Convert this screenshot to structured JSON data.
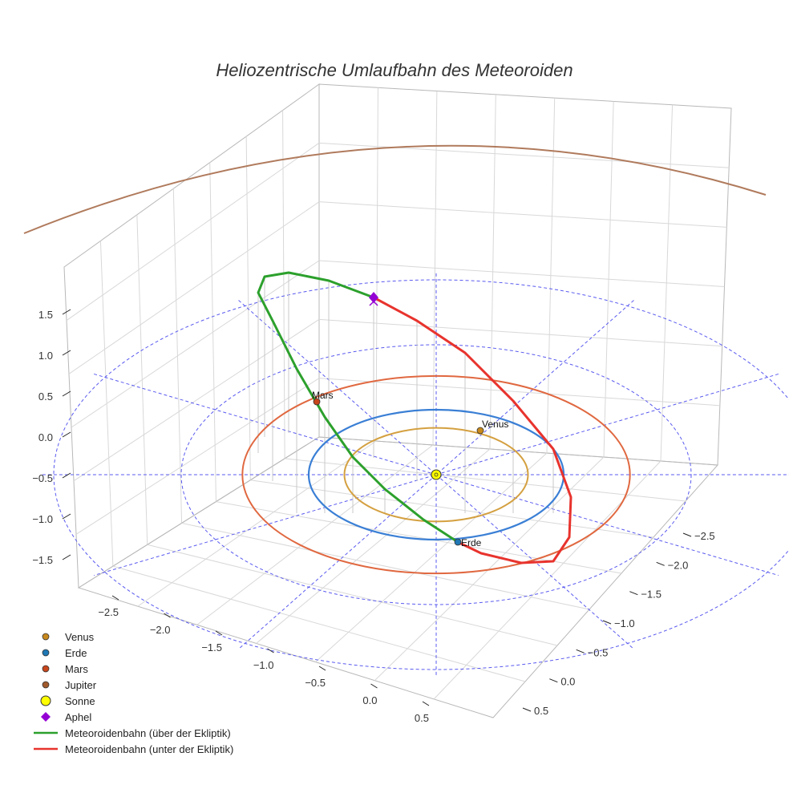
{
  "chart_data": {
    "type": "3d-line",
    "title": "Heliozentrische Umlaufbahn des Meteoroiden",
    "x_ticks": [
      "−2.5",
      "−2.0",
      "−1.5",
      "−1.0",
      "−0.5",
      "0.0",
      "0.5"
    ],
    "y_ticks": [
      "−2.5",
      "−2.0",
      "−1.5",
      "−1.0",
      "−0.5",
      "0.0",
      "0.5"
    ],
    "z_ticks": [
      "1.5",
      "1.0",
      "0.5",
      "0.0",
      "−0.5",
      "−1.0",
      "−1.5"
    ],
    "x_tick_values": [
      -2.5,
      -2.0,
      -1.5,
      -1.0,
      -0.5,
      0.0,
      0.5
    ],
    "y_tick_values": [
      -2.5,
      -2.0,
      -1.5,
      -1.0,
      -0.5,
      0.0,
      0.5
    ],
    "z_tick_values": [
      1.5,
      1.0,
      0.5,
      0.0,
      -0.5,
      -1.0,
      -1.5
    ],
    "planets": [
      {
        "name": "Venus",
        "orbit_radius_au": 0.72,
        "color": "#d4a040",
        "marker_color": "#c8891c",
        "angle_deg": 48
      },
      {
        "name": "Erde",
        "orbit_radius_au": 1.0,
        "color": "#3a7fd5",
        "marker_color": "#1f77b4",
        "angle_deg": 280
      },
      {
        "name": "Mars",
        "orbit_radius_au": 1.52,
        "color": "#e06840",
        "marker_color": "#c8461c",
        "angle_deg": 145
      },
      {
        "name": "Jupiter",
        "orbit_radius_au": 5.2,
        "color": "#b07a5c",
        "marker_color": "#a05a2c",
        "angle_deg": null
      }
    ],
    "sun": {
      "name": "Sonne",
      "color": "#ffff00"
    },
    "meteoroid_orbit": {
      "perihelion_au": 1.0,
      "aphelion_au": 2.3,
      "aphelion_height_au": 1.7,
      "above_color": "#2ca02c",
      "below_color": "#e8332d"
    }
  },
  "legend": [
    {
      "label": "Venus",
      "kind": "dot",
      "color": "#c8891c"
    },
    {
      "label": "Erde",
      "kind": "dot",
      "color": "#1f77b4"
    },
    {
      "label": "Mars",
      "kind": "dot",
      "color": "#c8461c"
    },
    {
      "label": "Jupiter",
      "kind": "dot",
      "color": "#a05a2c"
    },
    {
      "label": "Sonne",
      "kind": "sun",
      "color": "#ffff00"
    },
    {
      "label": "Aphel",
      "kind": "diamond",
      "color": "#9400d3"
    },
    {
      "label": "Meteoroidenbahn (über der Ekliptik)",
      "kind": "line",
      "color": "#2ca02c"
    },
    {
      "label": "Meteoroidenbahn (unter der Ekliptik)",
      "kind": "line",
      "color": "#e8332d"
    }
  ]
}
